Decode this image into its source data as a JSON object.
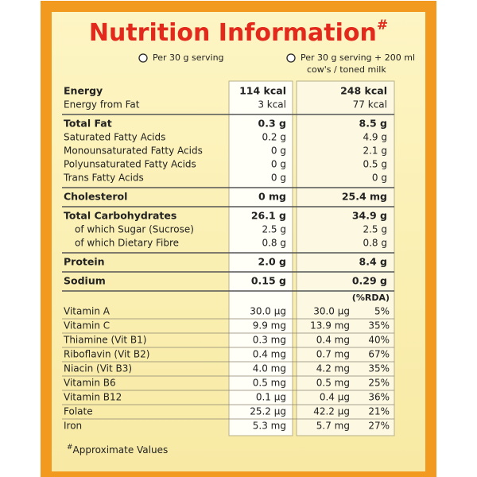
{
  "title": "Nutrition Information",
  "title_mark": "#",
  "columns": {
    "serving": "Per 30 g serving",
    "with_milk": [
      "Per 30 g serving + 200 ml",
      "cow's / toned milk"
    ]
  },
  "groups": [
    {
      "rows": [
        {
          "label": "Energy",
          "serving": "114 kcal",
          "with_milk": "248 kcal"
        },
        {
          "label": "Energy from Fat",
          "serving": "3 kcal",
          "with_milk": "77 kcal"
        }
      ]
    },
    {
      "rows": [
        {
          "label": "Total Fat",
          "serving": "0.3 g",
          "with_milk": "8.5 g"
        },
        {
          "label": "Saturated Fatty Acids",
          "serving": "0.2 g",
          "with_milk": "4.9 g"
        },
        {
          "label": "Monounsaturated Fatty Acids",
          "serving": "0 g",
          "with_milk": "2.1 g"
        },
        {
          "label": "Polyunsaturated Fatty Acids",
          "serving": "0 g",
          "with_milk": "0.5 g"
        },
        {
          "label": "Trans Fatty Acids",
          "serving": "0 g",
          "with_milk": "0 g"
        }
      ]
    },
    {
      "rows": [
        {
          "label": "Cholesterol",
          "serving": "0 mg",
          "with_milk": "25.4 mg"
        }
      ]
    },
    {
      "rows": [
        {
          "label": "Total Carbohydrates",
          "serving": "26.1 g",
          "with_milk": "34.9 g"
        },
        {
          "label": "of which Sugar (Sucrose)",
          "serving": "2.5 g",
          "with_milk": "2.5 g"
        },
        {
          "label": "of which Dietary Fibre",
          "serving": "0.8 g",
          "with_milk": "0.8 g"
        }
      ]
    },
    {
      "rows": [
        {
          "label": "Protein",
          "serving": "2.0 g",
          "with_milk": "8.4 g"
        }
      ]
    },
    {
      "rows": [
        {
          "label": "Sodium",
          "serving": "0.15 g",
          "with_milk": "0.29 g"
        }
      ]
    }
  ],
  "rda_header": "(%RDA)",
  "vitamins": [
    {
      "label": "Vitamin A",
      "serving": "30.0 µg",
      "with_milk": "30.0 µg",
      "rda": "5%"
    },
    {
      "label": "Vitamin C",
      "serving": "9.9 mg",
      "with_milk": "13.9 mg",
      "rda": "35%"
    },
    {
      "label": "Thiamine (Vit B1)",
      "serving": "0.3 mg",
      "with_milk": "0.4 mg",
      "rda": "40%"
    },
    {
      "label": "Riboflavin (Vit B2)",
      "serving": "0.4 mg",
      "with_milk": "0.7 mg",
      "rda": "67%"
    },
    {
      "label": "Niacin (Vit B3)",
      "serving": "4.0 mg",
      "with_milk": "4.2 mg",
      "rda": "35%"
    },
    {
      "label": "Vitamin B6",
      "serving": "0.5 mg",
      "with_milk": "0.5 mg",
      "rda": "25%"
    },
    {
      "label": "Vitamin B12",
      "serving": "0.1 µg",
      "with_milk": "0.4 µg",
      "rda": "36%"
    },
    {
      "label": "Folate",
      "serving": "25.2 µg",
      "with_milk": "42.2 µg",
      "rda": "21%"
    },
    {
      "label": "Iron",
      "serving": "5.3 mg",
      "with_milk": "5.7 mg",
      "rda": "27%"
    }
  ],
  "footnote": {
    "mark": "#",
    "text": "Approximate Values"
  }
}
